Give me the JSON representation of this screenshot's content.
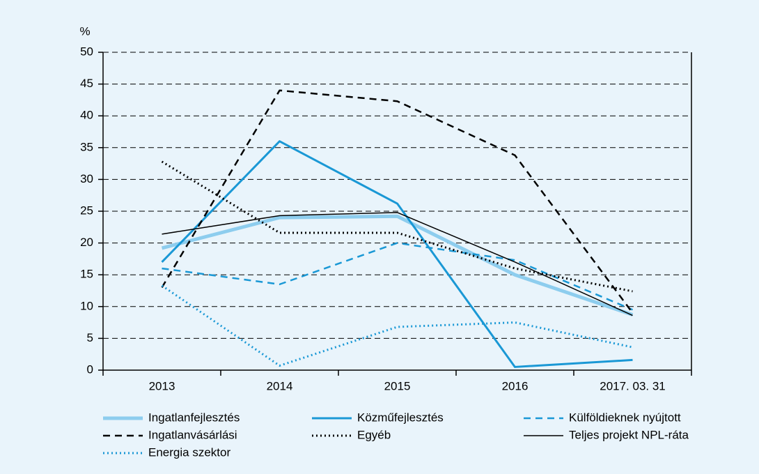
{
  "chart_data": {
    "type": "line",
    "y_label": "%",
    "categories": [
      "2013",
      "2014",
      "2015",
      "2016",
      "2017. 03. 31"
    ],
    "ylim": [
      0,
      50
    ],
    "yticks": [
      0,
      5,
      10,
      15,
      20,
      25,
      30,
      35,
      40,
      45,
      50
    ],
    "grid": true,
    "series": [
      {
        "name": "Ingatlanfejlesztés",
        "color": "#8dcdee",
        "style": "thick",
        "values": [
          19.2,
          24,
          24.2,
          15,
          8.7
        ]
      },
      {
        "name": "Közműfejlesztés",
        "color": "#1a98d5",
        "style": "solid",
        "values": [
          17,
          36,
          26.2,
          0.5,
          1.6
        ]
      },
      {
        "name": "Külföldieknek nyújtott",
        "color": "#1a98d5",
        "style": "dashed",
        "values": [
          16,
          13.5,
          20,
          17.3,
          9.5
        ]
      },
      {
        "name": "Ingatlanvásárlási",
        "color": "#000000",
        "style": "dashed",
        "values": [
          13,
          44,
          42.3,
          33.8,
          9
        ]
      },
      {
        "name": "Egyéb",
        "color": "#000000",
        "style": "dotted",
        "values": [
          32.8,
          21.6,
          21.6,
          16,
          12.4
        ]
      },
      {
        "name": "Teljes projekt NPL-ráta",
        "color": "#000000",
        "style": "thin",
        "values": [
          21.4,
          24.3,
          24.8,
          17,
          8.6
        ]
      },
      {
        "name": "Energia szektor",
        "color": "#1a98d5",
        "style": "dotted",
        "values": [
          13.3,
          0.7,
          6.8,
          7.5,
          3.6
        ]
      }
    ]
  }
}
